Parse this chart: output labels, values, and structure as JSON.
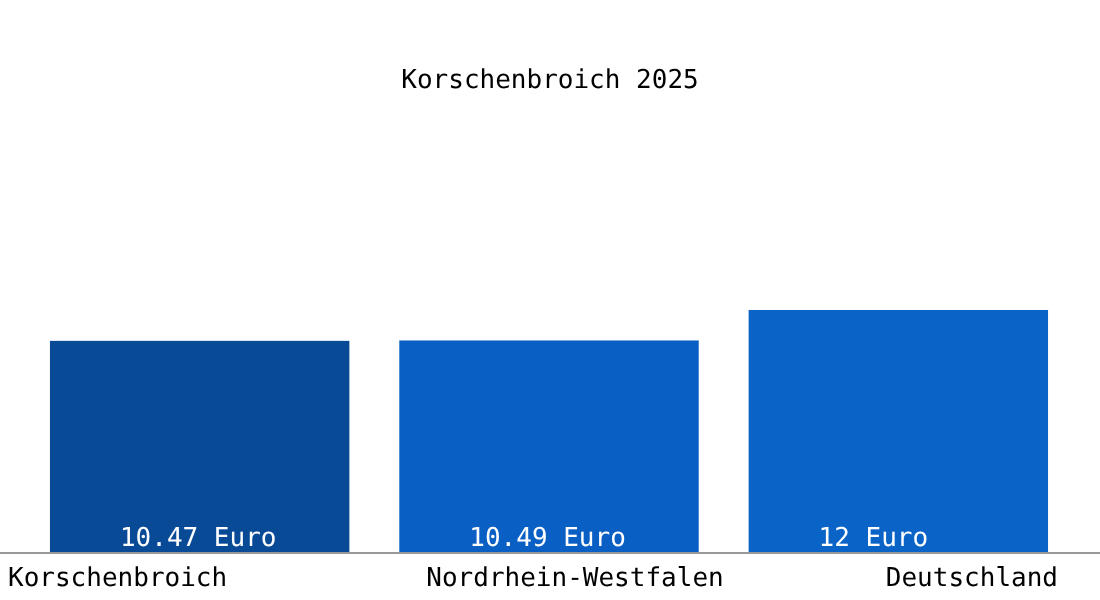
{
  "chart_data": {
    "type": "bar",
    "title": "Korschenbroich 2025",
    "categories": [
      "Korschenbroich",
      "Nordrhein-Westfalen",
      "Deutschland"
    ],
    "values": [
      10.47,
      10.49,
      12
    ],
    "colors": [
      "#084a96",
      "#0a5fc4",
      "#0a64c8"
    ],
    "value_labels": [
      "10.47 Euro",
      "10.49 Euro",
      "12 Euro"
    ]
  }
}
